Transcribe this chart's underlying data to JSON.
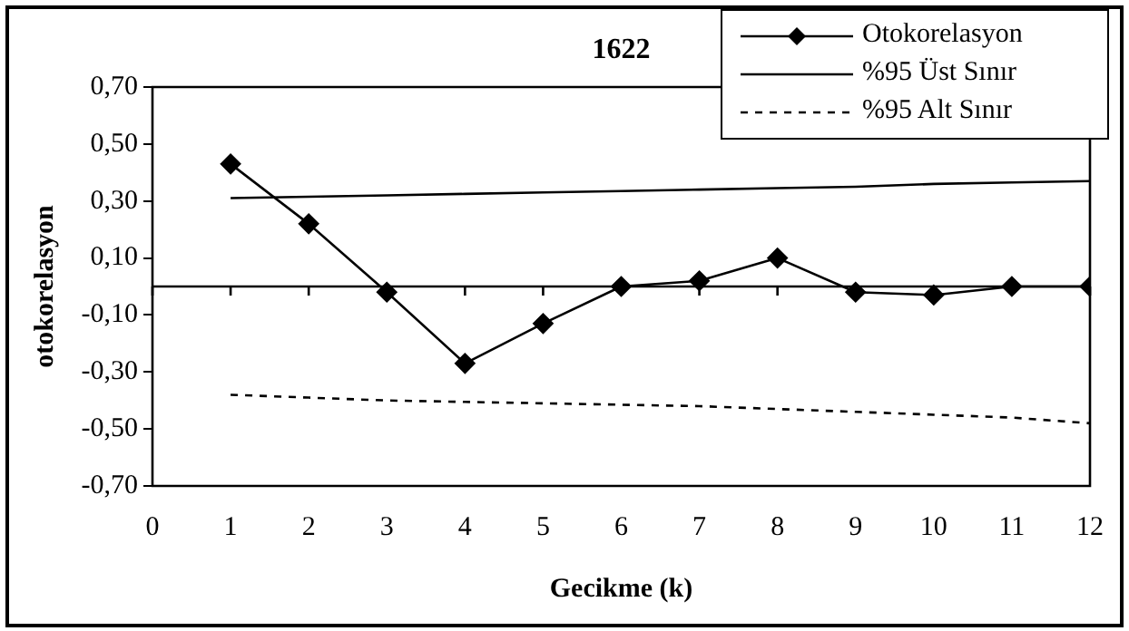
{
  "chart_data": {
    "type": "line",
    "title": "1622",
    "xlabel": "Gecikme (k)",
    "ylabel": "otokorelasyon",
    "x": [
      1,
      2,
      3,
      4,
      5,
      6,
      7,
      8,
      9,
      10,
      11,
      12
    ],
    "xlim": [
      0,
      12
    ],
    "xticks": [
      0,
      1,
      2,
      3,
      4,
      5,
      6,
      7,
      8,
      9,
      10,
      11,
      12
    ],
    "ylim": [
      -0.7,
      0.7
    ],
    "yticks": [
      {
        "value": -0.7,
        "label": "-0,70"
      },
      {
        "value": -0.5,
        "label": "-0,50"
      },
      {
        "value": -0.3,
        "label": "-0,30"
      },
      {
        "value": -0.1,
        "label": "-0,10"
      },
      {
        "value": 0.1,
        "label": "0,10"
      },
      {
        "value": 0.3,
        "label": "0,30"
      },
      {
        "value": 0.5,
        "label": "0,50"
      },
      {
        "value": 0.7,
        "label": "0,70"
      }
    ],
    "ref_lines": [
      {
        "axis": "y",
        "value": 0,
        "color": "#000000"
      }
    ],
    "grid": false,
    "legend": "top right",
    "series": [
      {
        "name": "Otokorelasyon",
        "color": "#000000",
        "marker": "diamond",
        "line_style": "solid",
        "values": [
          0.43,
          0.22,
          -0.02,
          -0.27,
          -0.13,
          0.0,
          0.02,
          0.1,
          -0.02,
          -0.03,
          0.0,
          0.0
        ]
      },
      {
        "name": "%95 Üst Sınır",
        "color": "#000000",
        "marker": "none",
        "line_style": "solid",
        "values": [
          0.31,
          0.315,
          0.32,
          0.325,
          0.33,
          0.335,
          0.34,
          0.345,
          0.35,
          0.36,
          0.365,
          0.37
        ]
      },
      {
        "name": "%95 Alt Sınır",
        "color": "#000000",
        "marker": "none",
        "line_style": "dashed",
        "values": [
          -0.38,
          -0.39,
          -0.4,
          -0.405,
          -0.41,
          -0.415,
          -0.42,
          -0.43,
          -0.44,
          -0.45,
          -0.46,
          -0.48
        ]
      }
    ]
  }
}
